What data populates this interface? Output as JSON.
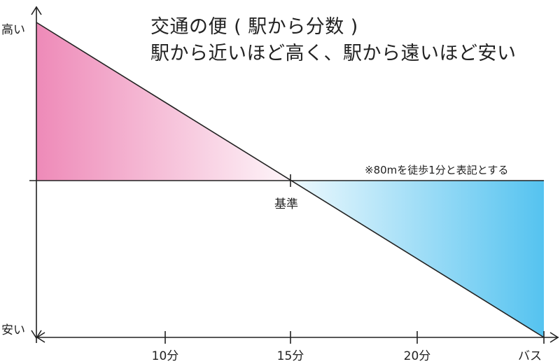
{
  "title": {
    "line1": "交通の便 ( 駅から分数 )",
    "line2": "駅から近いほど高く、駅から遠いほど安い"
  },
  "axes": {
    "y_high": "高い",
    "y_low": "安い"
  },
  "note": "※80mを徒歩1分と表記とする",
  "baseline_label": "基準",
  "x_ticks": [
    "10分",
    "15分",
    "20分",
    "バス"
  ],
  "colors": {
    "pink": "#ee8ab8",
    "blue": "#55c3f0",
    "line": "#222222"
  }
}
